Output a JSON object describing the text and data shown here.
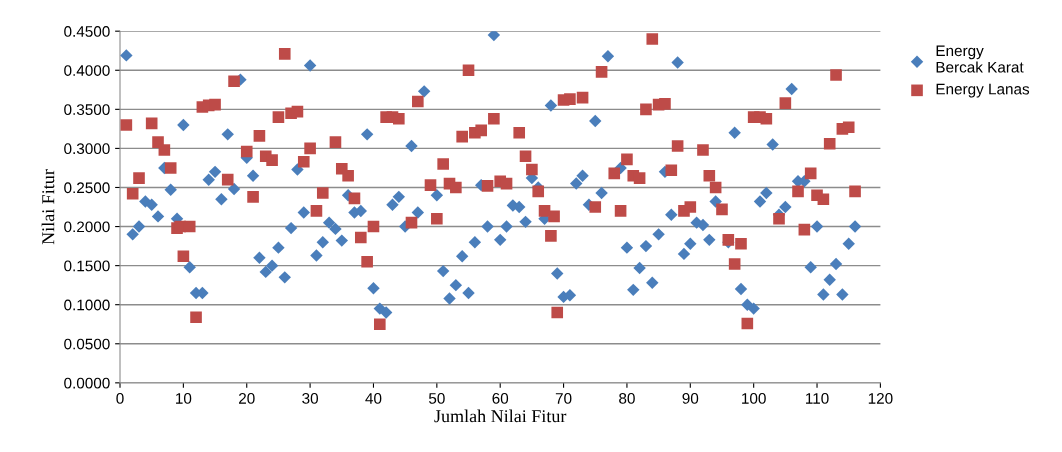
{
  "chart_data": {
    "type": "scatter",
    "xlabel": "Jumlah Nilai Fitur",
    "ylabel": "Nilai Fitur",
    "xlim": [
      0,
      120
    ],
    "xticks": [
      0,
      10,
      20,
      30,
      40,
      50,
      60,
      70,
      80,
      90,
      100,
      110,
      120
    ],
    "ylim": [
      0,
      0.45
    ],
    "yticks": [
      {
        "value": 0,
        "label": "0.0000"
      },
      {
        "value": 0.05,
        "label": "0.0500"
      },
      {
        "value": 0.1,
        "label": "0.1000"
      },
      {
        "value": 0.15,
        "label": "0.1500"
      },
      {
        "value": 0.2,
        "label": "0.2000"
      },
      {
        "value": 0.25,
        "label": "0.2500"
      },
      {
        "value": 0.3,
        "label": "0.3000"
      },
      {
        "value": 0.35,
        "label": "0.3500"
      },
      {
        "value": 0.4,
        "label": "0.4000"
      },
      {
        "value": 0.45,
        "label": "0.4500"
      }
    ],
    "grid": "y",
    "legend": "right",
    "series": [
      {
        "name": "Energy Bercak Karat",
        "color": "#4a7ebb",
        "marker": "diamond",
        "x": [
          1,
          2,
          3,
          4,
          5,
          6,
          7,
          8,
          9,
          10,
          11,
          12,
          13,
          14,
          15,
          16,
          17,
          18,
          19,
          20,
          21,
          22,
          23,
          24,
          25,
          26,
          27,
          28,
          29,
          30,
          31,
          32,
          33,
          34,
          35,
          36,
          37,
          38,
          39,
          40,
          41,
          42,
          43,
          44,
          45,
          46,
          47,
          48,
          49,
          50,
          51,
          52,
          53,
          54,
          55,
          56,
          57,
          58,
          59,
          60,
          61,
          62,
          63,
          64,
          65,
          66,
          67,
          68,
          69,
          70,
          71,
          72,
          73,
          74,
          75,
          76,
          77,
          78,
          79,
          80,
          81,
          82,
          83,
          84,
          85,
          86,
          87,
          88,
          89,
          90,
          91,
          92,
          93,
          94,
          95,
          96,
          97,
          98,
          99,
          100,
          101,
          102,
          103,
          104,
          105,
          106,
          107,
          108,
          109,
          110,
          111,
          112,
          113,
          114,
          115,
          116
        ],
        "values": [
          0.419,
          0.19,
          0.2,
          0.232,
          0.228,
          0.213,
          0.275,
          0.247,
          0.21,
          0.33,
          0.148,
          0.115,
          0.115,
          0.26,
          0.27,
          0.235,
          0.318,
          0.248,
          0.388,
          0.288,
          0.265,
          0.16,
          0.142,
          0.15,
          0.173,
          0.135,
          0.198,
          0.273,
          0.218,
          0.406,
          0.163,
          0.18,
          0.205,
          0.197,
          0.182,
          0.24,
          0.218,
          0.22,
          0.318,
          0.121,
          0.095,
          0.09,
          0.228,
          0.238,
          0.2,
          0.303,
          0.218,
          0.373,
          null,
          0.24,
          0.143,
          0.108,
          0.125,
          0.162,
          0.115,
          0.18,
          0.253,
          0.2,
          0.445,
          0.183,
          0.2,
          0.227,
          0.225,
          0.206,
          0.262,
          0.25,
          0.21,
          0.355,
          0.14,
          0.11,
          0.112,
          0.255,
          0.265,
          0.228,
          0.335,
          0.243,
          0.418,
          null,
          0.275,
          0.173,
          0.119,
          0.147,
          0.175,
          0.128,
          0.19,
          0.27,
          0.215,
          0.41,
          0.165,
          0.178,
          0.205,
          0.202,
          0.183,
          0.232,
          null,
          0.18,
          0.32,
          0.12,
          0.1,
          0.095,
          0.232,
          0.243,
          0.305,
          0.215,
          0.225,
          0.376,
          0.258,
          0.258,
          0.148,
          0.2,
          0.113,
          0.132,
          0.152,
          0.113,
          0.178,
          0.2
        ]
      },
      {
        "name": "Energy Lanas",
        "color": "#be4b48",
        "marker": "square",
        "x": [
          1,
          2,
          3,
          5,
          6,
          7,
          8,
          9,
          9.5,
          10,
          11,
          12,
          13,
          14,
          15,
          17,
          18,
          20,
          21,
          22,
          23,
          24,
          25,
          26,
          27,
          28,
          29,
          30,
          31,
          32,
          34,
          35,
          36,
          37,
          38,
          39,
          40,
          41,
          42,
          43,
          44,
          46,
          47,
          49,
          50,
          51,
          52,
          53,
          54,
          55,
          56,
          57,
          58,
          59,
          60,
          61,
          63,
          64,
          65,
          66,
          67,
          68,
          68.5,
          69,
          70,
          71,
          73,
          75,
          76,
          78,
          79,
          80,
          81,
          82,
          83,
          84,
          85,
          86,
          87,
          88,
          89,
          90,
          92,
          93,
          94,
          95,
          96,
          97,
          98,
          99,
          100,
          101,
          102,
          104,
          105,
          107,
          108,
          109,
          110,
          111,
          112,
          113,
          114,
          115,
          116
        ],
        "values": [
          0.33,
          0.242,
          0.262,
          0.332,
          0.308,
          0.298,
          0.275,
          0.198,
          0.2,
          0.162,
          0.2,
          0.084,
          0.353,
          0.355,
          0.356,
          0.26,
          0.386,
          0.296,
          0.238,
          0.316,
          0.29,
          0.285,
          0.34,
          0.421,
          0.345,
          0.347,
          0.283,
          0.3,
          0.22,
          0.243,
          0.308,
          0.274,
          0.265,
          0.236,
          0.186,
          0.155,
          0.2,
          0.075,
          0.34,
          0.34,
          0.338,
          0.205,
          0.36,
          0.253,
          0.21,
          0.28,
          0.255,
          0.25,
          0.315,
          0.4,
          0.32,
          0.323,
          0.252,
          0.338,
          0.258,
          0.255,
          0.32,
          0.29,
          0.273,
          0.245,
          0.22,
          0.188,
          0.213,
          0.09,
          0.362,
          0.363,
          0.365,
          0.225,
          0.398,
          0.268,
          0.22,
          0.286,
          0.265,
          0.262,
          0.35,
          0.44,
          0.356,
          0.357,
          0.272,
          0.303,
          0.22,
          0.225,
          0.298,
          0.265,
          0.25,
          0.222,
          0.183,
          0.152,
          0.178,
          0.076,
          0.34,
          0.34,
          0.338,
          0.21,
          0.358,
          0.245,
          0.196,
          0.268,
          0.24,
          0.235,
          0.306,
          0.394,
          0.325,
          0.327,
          0.245
        ]
      }
    ]
  }
}
